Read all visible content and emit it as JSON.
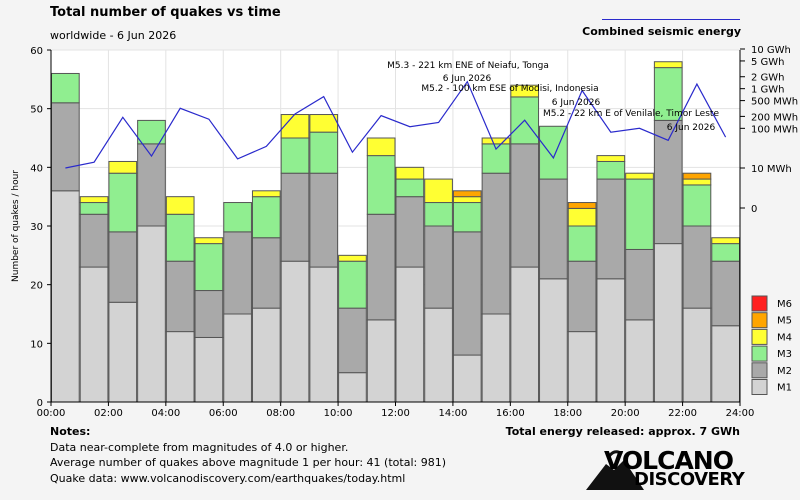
{
  "header": {
    "title": "Total number of quakes vs time",
    "subtitle": "worldwide -  6 Jun 2026",
    "legend_line_label": "Combined seismic energy",
    "energy_total": "Total energy released: approx. 7 GWh"
  },
  "notes": {
    "title": "Notes:",
    "line1": "Data near-complete from magnitudes of 4.0 or higher.",
    "line2": "Average number of quakes above magnitude 1 per hour: 41 (total: 981)",
    "line3": "Quake data: www.volcanodiscovery.com/earthquakes/today.html"
  },
  "logo": {
    "line1": "VOLCANO",
    "line2": "DISCOVERY"
  },
  "colors": {
    "M1": "#d3d3d3",
    "M2": "#a9a9a9",
    "M3": "#90ee90",
    "M4": "#ffff33",
    "M5": "#ffa500",
    "M6": "#ff2020",
    "energy_line": "#2a2acc",
    "plot_bg": "#ffffff",
    "page_bg": "#f4f4f4"
  },
  "chart_data": {
    "type": "bar",
    "stacked": true,
    "ylabel": "Number of quakes / hour",
    "ylim": [
      0,
      60
    ],
    "y_ticks": [
      0,
      10,
      20,
      30,
      40,
      50,
      60
    ],
    "x_tick_labels": [
      "00:00",
      "02:00",
      "04:00",
      "06:00",
      "08:00",
      "10:00",
      "12:00",
      "14:00",
      "16:00",
      "18:00",
      "20:00",
      "22:00",
      "24:00"
    ],
    "legend": [
      "M6",
      "M5",
      "M4",
      "M3",
      "M2",
      "M1"
    ],
    "legend_placement": "bottom-right",
    "hours": [
      0,
      1,
      2,
      3,
      4,
      5,
      6,
      7,
      8,
      9,
      10,
      11,
      12,
      13,
      14,
      15,
      16,
      17,
      18,
      19,
      20,
      21,
      22,
      23
    ],
    "series": [
      {
        "name": "M1",
        "values": [
          36,
          23,
          17,
          30,
          12,
          11,
          15,
          16,
          24,
          23,
          5,
          14,
          23,
          16,
          8,
          15,
          23,
          21,
          12,
          21,
          14,
          27,
          16,
          13
        ]
      },
      {
        "name": "M2",
        "values": [
          15,
          9,
          12,
          14,
          12,
          8,
          14,
          12,
          15,
          16,
          11,
          18,
          12,
          14,
          21,
          24,
          21,
          17,
          12,
          17,
          12,
          21,
          14,
          11
        ]
      },
      {
        "name": "M3",
        "values": [
          5,
          2,
          10,
          4,
          8,
          8,
          5,
          7,
          6,
          7,
          8,
          10,
          3,
          4,
          5,
          5,
          8,
          9,
          6,
          3,
          12,
          9,
          7,
          3
        ]
      },
      {
        "name": "M4",
        "values": [
          0,
          1,
          2,
          0,
          3,
          1,
          0,
          1,
          4,
          3,
          1,
          3,
          2,
          4,
          1,
          1,
          2,
          0,
          3,
          1,
          1,
          1,
          1,
          1
        ]
      },
      {
        "name": "M5",
        "values": [
          0,
          0,
          0,
          0,
          0,
          0,
          0,
          0,
          0,
          0,
          0,
          0,
          0,
          0,
          1,
          0,
          0,
          0,
          1,
          0,
          0,
          0,
          1,
          0
        ]
      },
      {
        "name": "M6",
        "values": [
          0,
          0,
          0,
          0,
          0,
          0,
          0,
          0,
          0,
          0,
          0,
          0,
          0,
          0,
          0,
          0,
          0,
          0,
          0,
          0,
          0,
          0,
          0,
          0
        ]
      }
    ],
    "energy_axis": {
      "tick_labels": [
        "10 GWh",
        "5 GWh",
        "2 GWh",
        "1 GWh",
        "500 MWh",
        "200 MWh",
        "100 MWh",
        "10 MWh",
        "0"
      ],
      "tick_values_mwh": [
        10000,
        5000,
        2000,
        1000,
        500,
        200,
        100,
        10,
        0
      ],
      "scale": "log"
    },
    "energy_mwh": [
      10,
      14,
      190,
      20,
      320,
      170,
      17,
      35,
      230,
      630,
      25,
      210,
      110,
      140,
      1500,
      30,
      160,
      18,
      900,
      80,
      100,
      50,
      1300,
      60
    ],
    "annotations": [
      {
        "line1": "M5.3 - 221 km ENE of Neiafu, Tonga",
        "line2": "6 Jun 2026",
        "hour": 14.5
      },
      {
        "line1": "M5.2 - 100 km ESE of Modisi, Indonesia",
        "line2": "6 Jun 2026",
        "hour": 18.5
      },
      {
        "line1": "M5.2 - 22 km E of Venilale, Timor Leste",
        "line2": "6 Jun 2026",
        "hour": 22.5
      }
    ]
  }
}
